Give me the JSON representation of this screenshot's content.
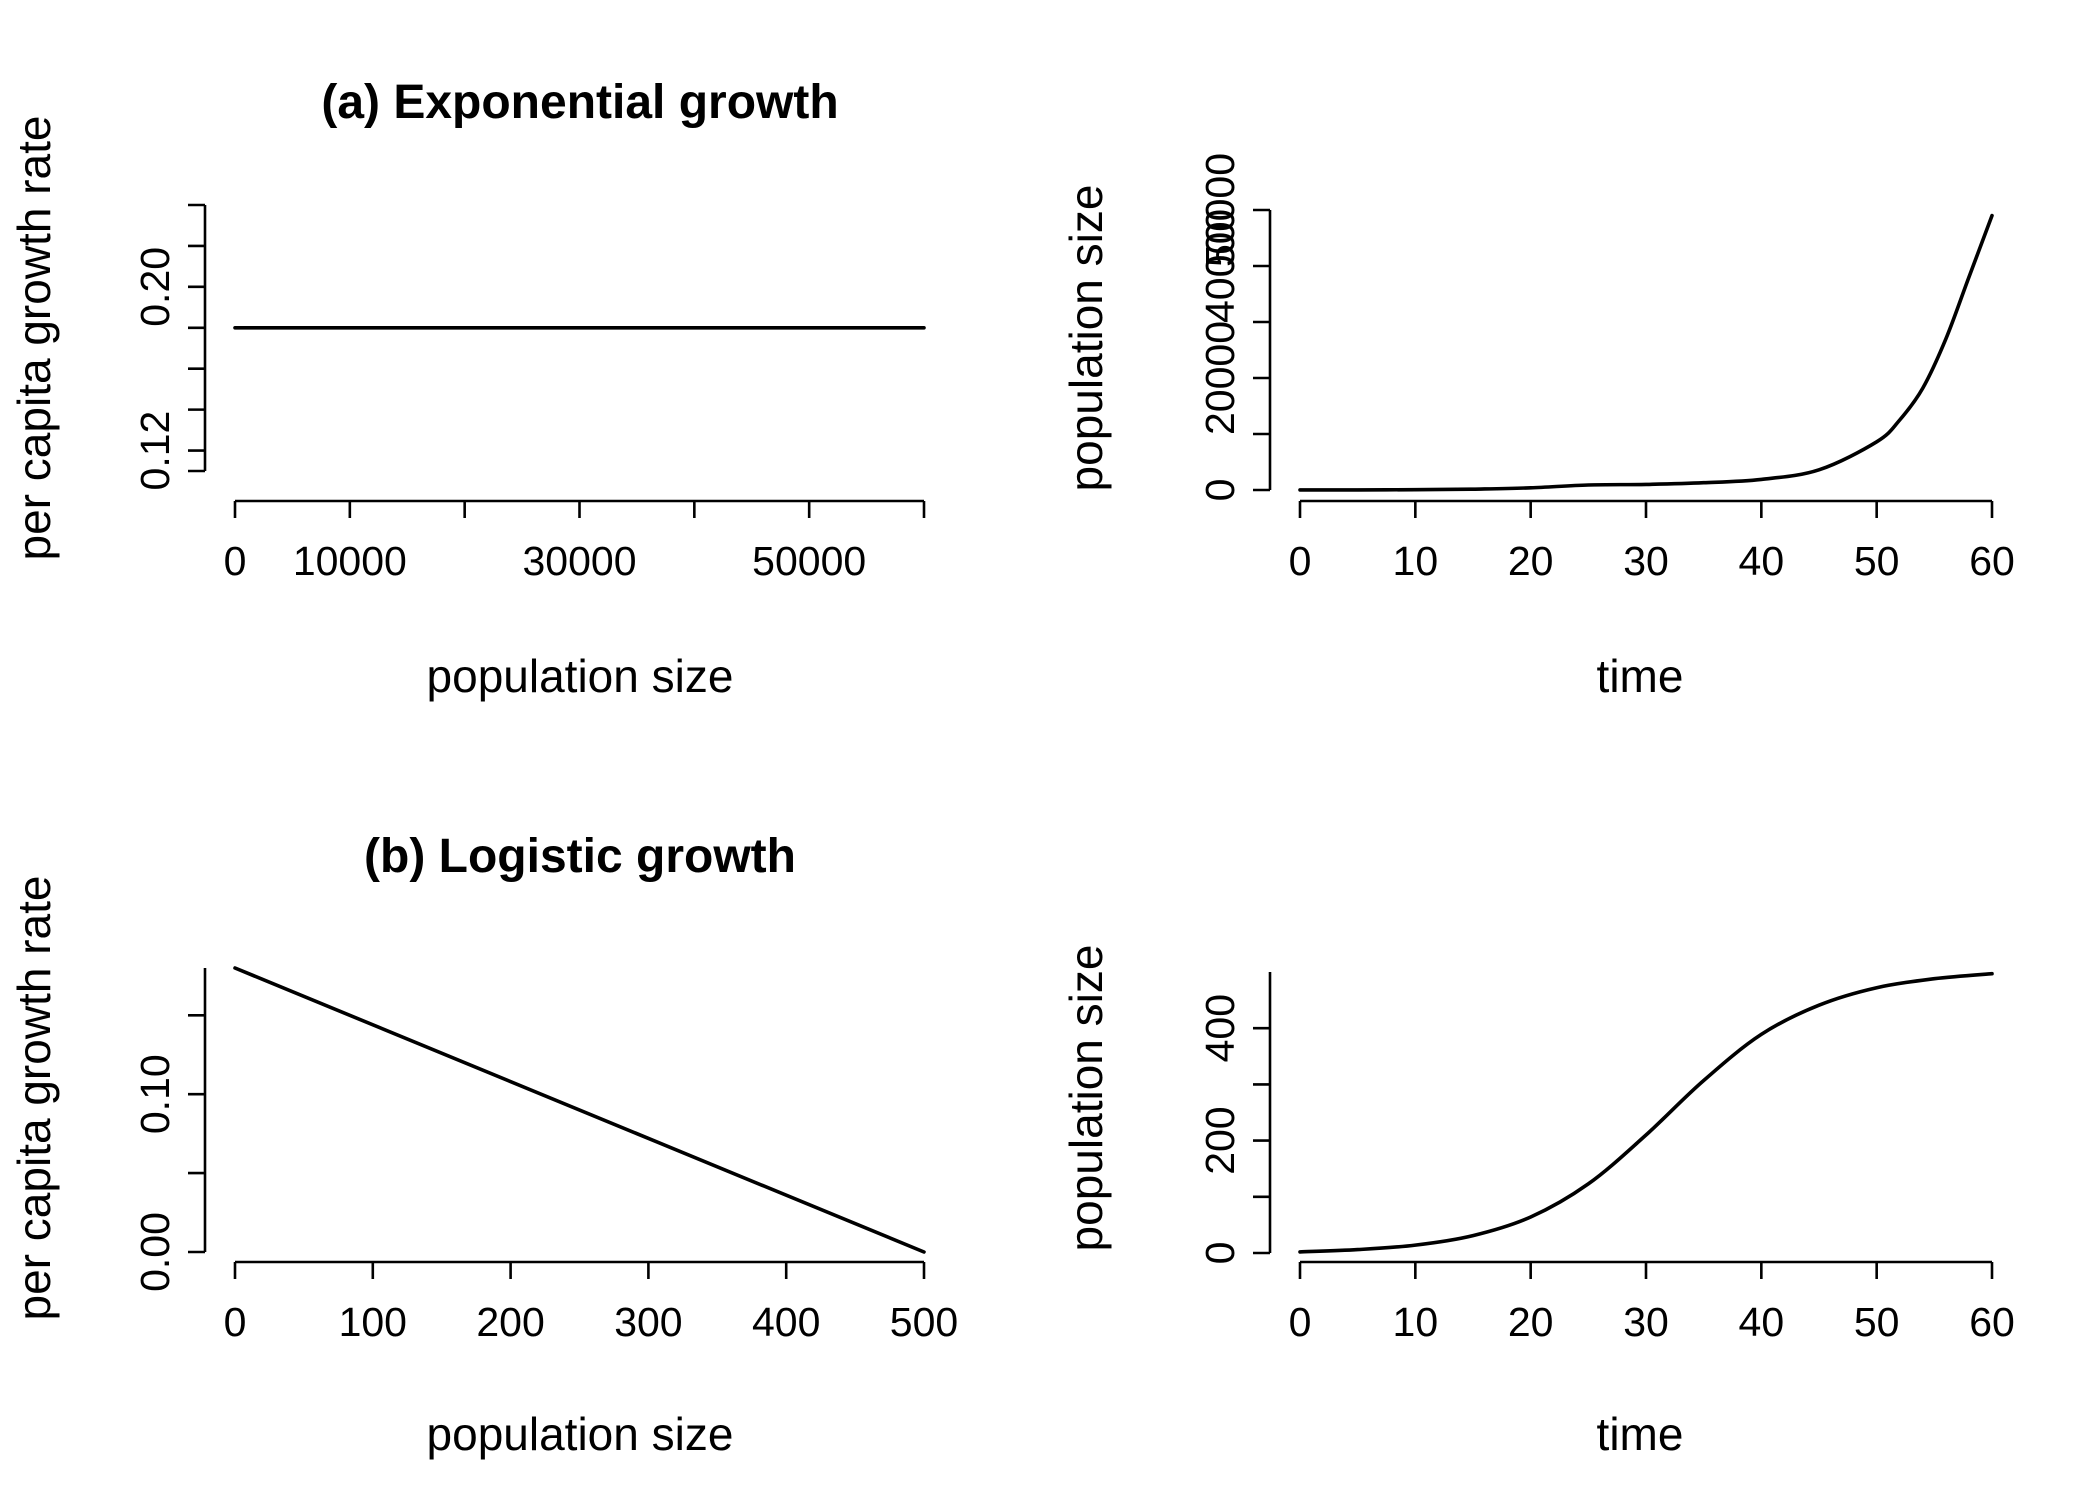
{
  "chart_data": [
    {
      "type": "line",
      "title": "(a) Exponential growth",
      "xlabel": "population size",
      "ylabel": "per capita growth rate",
      "xticks": [
        0,
        10000,
        20000,
        30000,
        40000,
        50000,
        60000
      ],
      "xtick_labels": [
        "0",
        "10000",
        "",
        "30000",
        "",
        "50000",
        ""
      ],
      "xlim": [
        0,
        60000
      ],
      "yticks": [
        0.11,
        0.12,
        0.14,
        0.16,
        0.18,
        0.2,
        0.22,
        0.24
      ],
      "ytick_labels": [
        "",
        "0.12",
        "",
        "",
        "",
        "0.20",
        "",
        ""
      ],
      "ylim": [
        0.11,
        0.24
      ],
      "x": [
        0,
        60000
      ],
      "y": [
        0.18,
        0.18
      ]
    },
    {
      "type": "line",
      "title": "",
      "xlabel": "time",
      "ylabel": "population size",
      "xticks": [
        0,
        10,
        20,
        30,
        40,
        50,
        60
      ],
      "xtick_labels": [
        "0",
        "10",
        "20",
        "30",
        "40",
        "50",
        "60"
      ],
      "xlim": [
        0,
        60
      ],
      "yticks": [
        0,
        10000,
        20000,
        30000,
        40000,
        50000
      ],
      "ytick_labels": [
        "0",
        "",
        "20000",
        "",
        "40000",
        "50000"
      ],
      "ylim": [
        0,
        50000
      ],
      "x": [
        0,
        5,
        10,
        15,
        20,
        25,
        30,
        35,
        40,
        45,
        50,
        52,
        54,
        56,
        58,
        60
      ],
      "y": [
        10,
        25,
        60,
        150,
        400,
        900,
        1000,
        1300,
        1900,
        3600,
        8600,
        12500,
        18200,
        27000,
        38000,
        49000
      ]
    },
    {
      "type": "line",
      "title": "(b) Logistic growth",
      "xlabel": "population size",
      "ylabel": "per capita growth rate",
      "xticks": [
        0,
        100,
        200,
        300,
        400,
        500
      ],
      "xtick_labels": [
        "0",
        "100",
        "200",
        "300",
        "400",
        "500"
      ],
      "xlim": [
        0,
        500
      ],
      "yticks": [
        0.0,
        0.05,
        0.1,
        0.15
      ],
      "ytick_labels": [
        "0.00",
        "",
        "0.10",
        ""
      ],
      "ylim": [
        0,
        0.18
      ],
      "x": [
        0,
        500
      ],
      "y": [
        0.18,
        0.0
      ]
    },
    {
      "type": "line",
      "title": "",
      "xlabel": "time",
      "ylabel": "population size",
      "xticks": [
        0,
        10,
        20,
        30,
        40,
        50,
        60
      ],
      "xtick_labels": [
        "0",
        "10",
        "20",
        "30",
        "40",
        "50",
        "60"
      ],
      "xlim": [
        0,
        60
      ],
      "yticks": [
        0,
        100,
        200,
        300,
        400
      ],
      "ytick_labels": [
        "0",
        "",
        "200",
        "",
        "400"
      ],
      "ylim": [
        0,
        500
      ],
      "x": [
        0,
        5,
        10,
        15,
        20,
        25,
        30,
        35,
        40,
        45,
        50,
        55,
        60
      ],
      "y": [
        2,
        6,
        14,
        31,
        64,
        123,
        210,
        307,
        389,
        441,
        472,
        488,
        497
      ]
    }
  ]
}
